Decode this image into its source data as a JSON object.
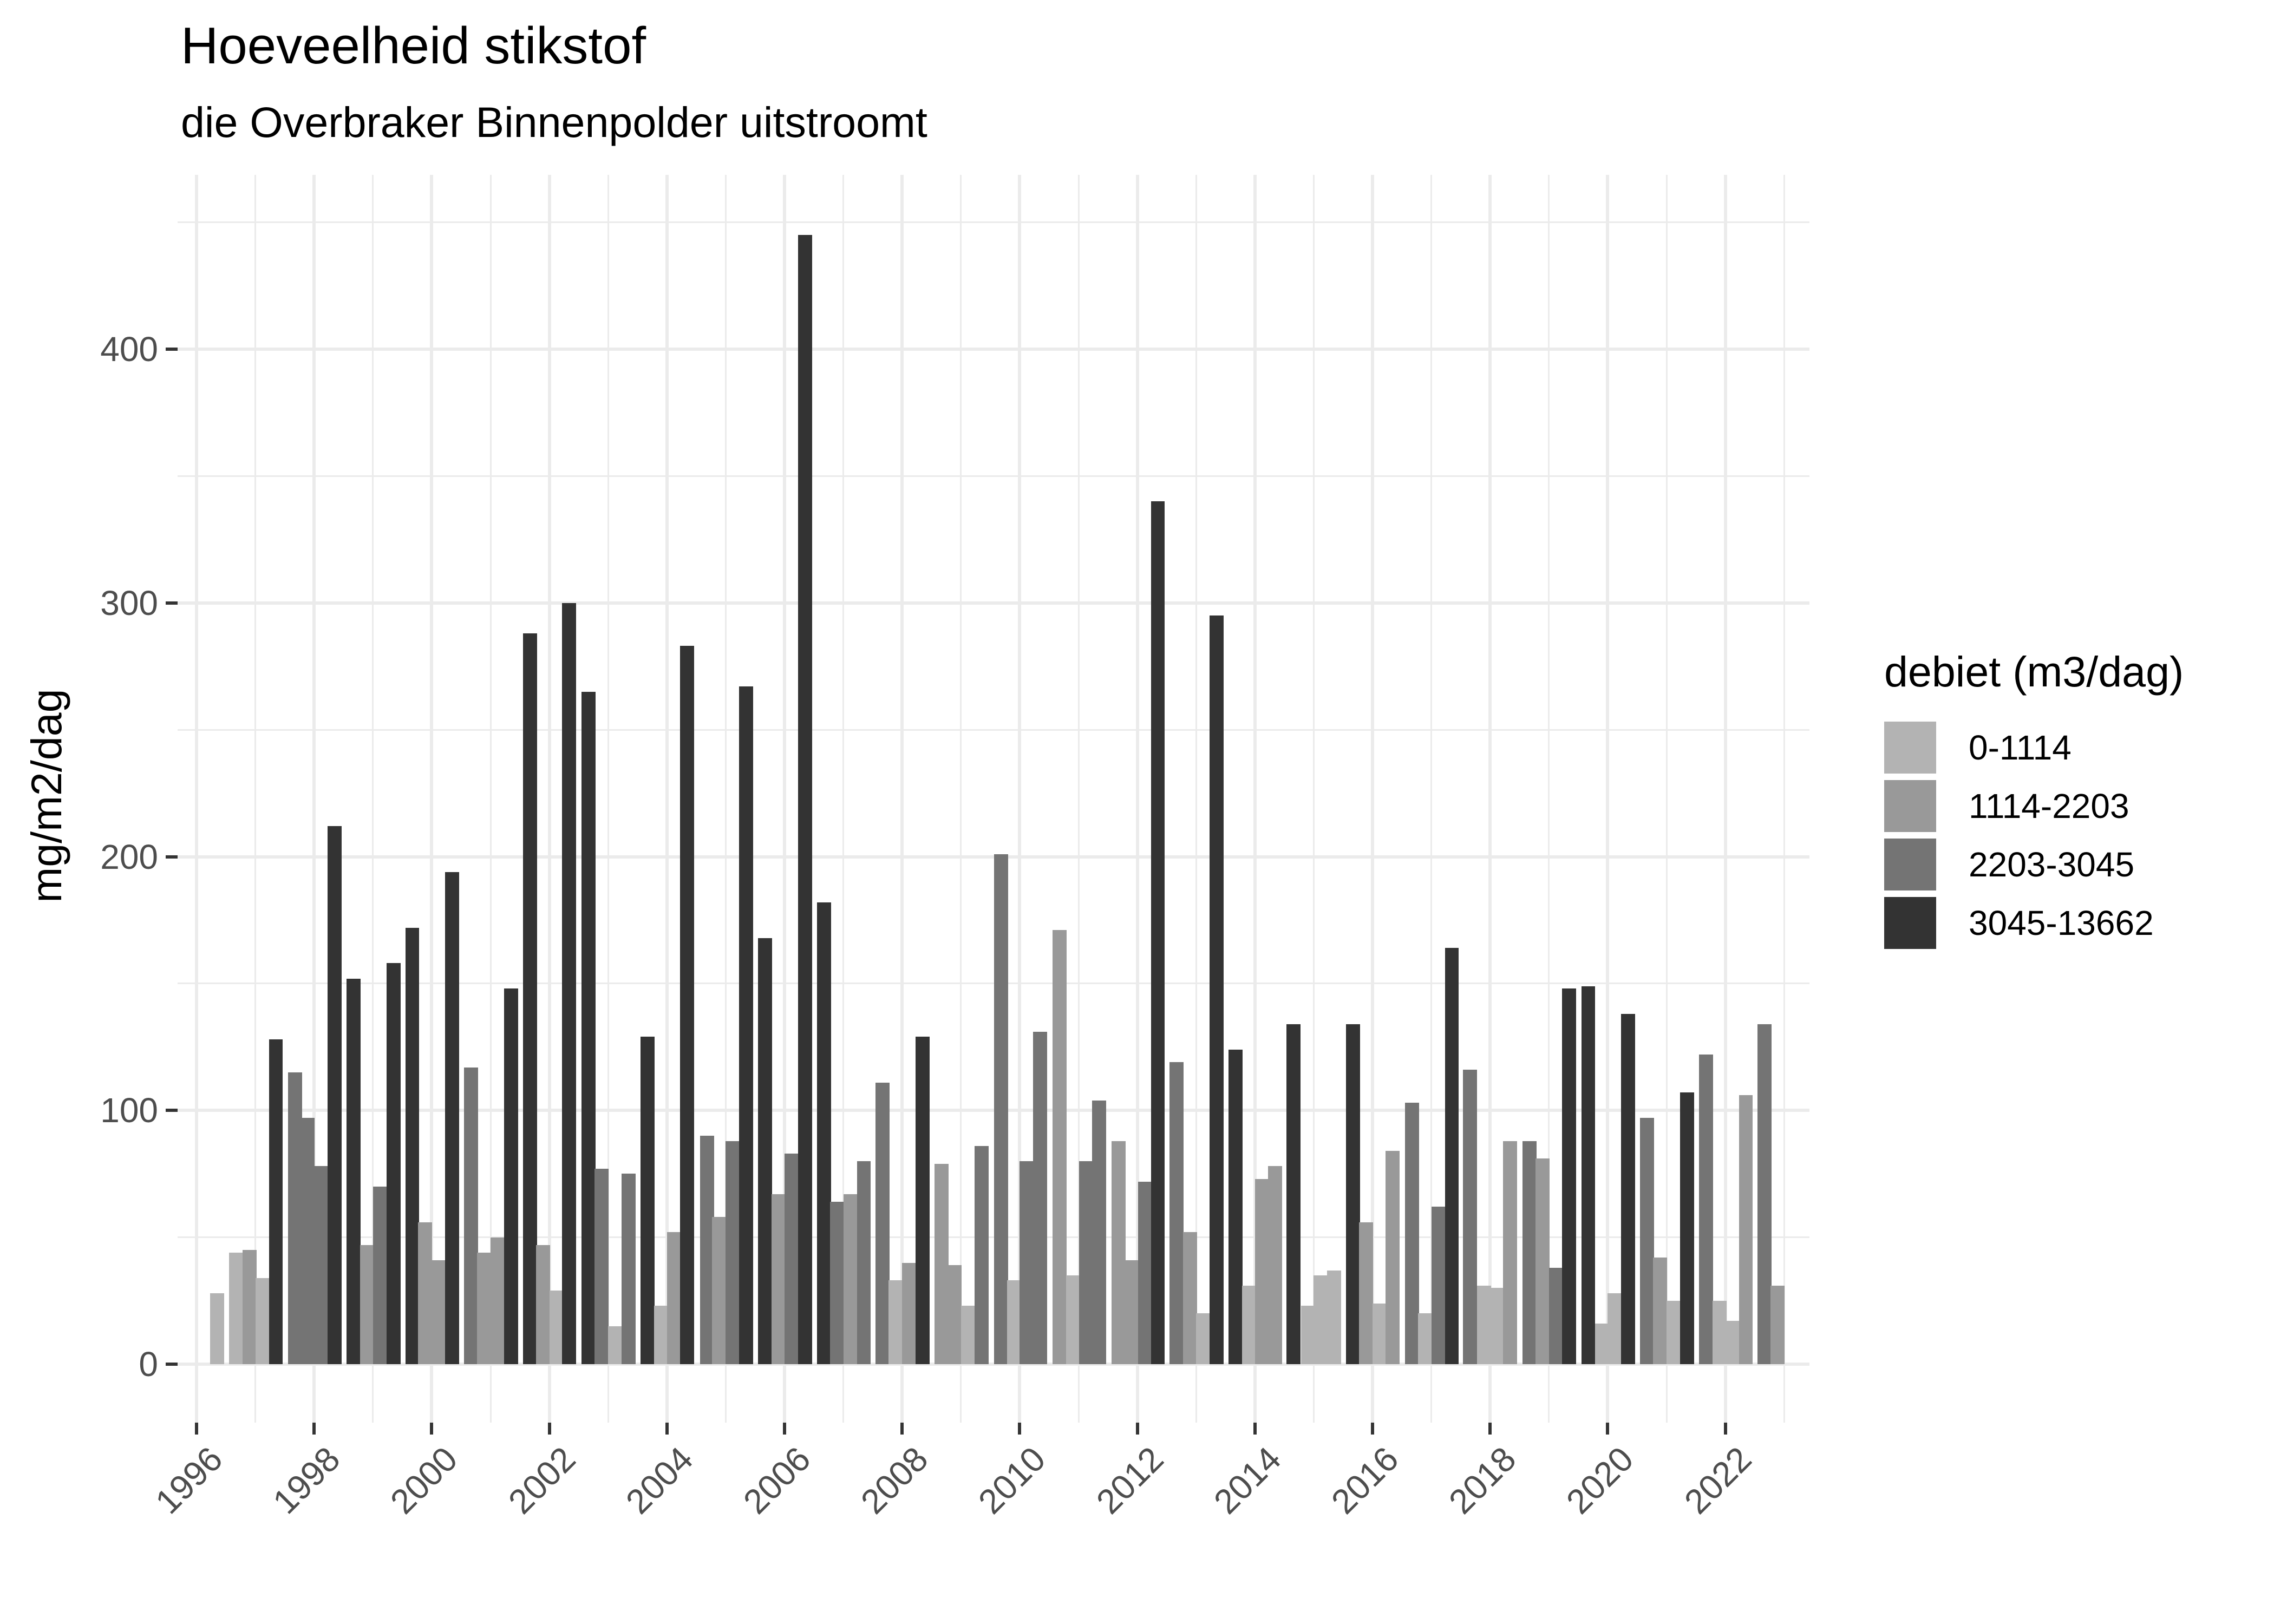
{
  "header": {
    "title": "Hoeveelheid stikstof",
    "subtitle": "die Overbraker Binnenpolder uitstroomt"
  },
  "axes": {
    "ylabel": "mg/m2/dag",
    "yticks": [
      "0",
      "100",
      "200",
      "300",
      "400"
    ],
    "xticks": [
      "1996",
      "1998",
      "2000",
      "2002",
      "2004",
      "2006",
      "2008",
      "2010",
      "2012",
      "2014",
      "2016",
      "2018",
      "2020",
      "2022"
    ]
  },
  "legend": {
    "title": "debiet (m3/dag)",
    "items": [
      {
        "label": "0-1114",
        "color": "#b3b3b3"
      },
      {
        "label": "1114-2203",
        "color": "#999999"
      },
      {
        "label": "2203-3045",
        "color": "#747474"
      },
      {
        "label": "3045-13662",
        "color": "#333333"
      }
    ]
  },
  "chart_data": {
    "type": "bar",
    "title": "Hoeveelheid stikstof",
    "subtitle": "die Overbraker Binnenpolder uitstroomt",
    "xlabel": "",
    "ylabel": "mg/m2/dag",
    "ylim": [
      0,
      468
    ],
    "xlim": [
      1995.7,
      2023.45
    ],
    "grid": true,
    "legend_position": "right",
    "legend_title": "debiet (m3/dag)",
    "categories_fill": {
      "0-1114": "#b3b3b3",
      "1114-2203": "#999999",
      "2203-3045": "#747474",
      "3045-13662": "#333333"
    },
    "bar_width_years": 0.22,
    "bars": [
      {
        "x": 1996.23,
        "cat": "0-1114",
        "y": 28
      },
      {
        "x": 1996.55,
        "cat": "0-1114",
        "y": 44
      },
      {
        "x": 1996.78,
        "cat": "1114-2203",
        "y": 45
      },
      {
        "x": 1997.0,
        "cat": "0-1114",
        "y": 34
      },
      {
        "x": 1997.23,
        "cat": "3045-13662",
        "y": 128
      },
      {
        "x": 1997.56,
        "cat": "2203-3045",
        "y": 115
      },
      {
        "x": 1997.77,
        "cat": "2203-3045",
        "y": 97
      },
      {
        "x": 1998.0,
        "cat": "2203-3045",
        "y": 78
      },
      {
        "x": 1998.23,
        "cat": "3045-13662",
        "y": 212
      },
      {
        "x": 1998.55,
        "cat": "3045-13662",
        "y": 152
      },
      {
        "x": 1998.78,
        "cat": "1114-2203",
        "y": 47
      },
      {
        "x": 1999.0,
        "cat": "2203-3045",
        "y": 70
      },
      {
        "x": 1999.23,
        "cat": "3045-13662",
        "y": 158
      },
      {
        "x": 1999.55,
        "cat": "3045-13662",
        "y": 172
      },
      {
        "x": 1999.77,
        "cat": "1114-2203",
        "y": 56
      },
      {
        "x": 2000.0,
        "cat": "1114-2203",
        "y": 41
      },
      {
        "x": 2000.23,
        "cat": "3045-13662",
        "y": 194
      },
      {
        "x": 2000.55,
        "cat": "2203-3045",
        "y": 117
      },
      {
        "x": 2000.77,
        "cat": "1114-2203",
        "y": 44
      },
      {
        "x": 2001.0,
        "cat": "1114-2203",
        "y": 50
      },
      {
        "x": 2001.23,
        "cat": "3045-13662",
        "y": 148
      },
      {
        "x": 2001.55,
        "cat": "3045-13662",
        "y": 288
      },
      {
        "x": 2001.77,
        "cat": "1114-2203",
        "y": 47
      },
      {
        "x": 2002.0,
        "cat": "0-1114",
        "y": 29
      },
      {
        "x": 2002.22,
        "cat": "3045-13662",
        "y": 300
      },
      {
        "x": 2002.55,
        "cat": "3045-13662",
        "y": 265
      },
      {
        "x": 2002.77,
        "cat": "2203-3045",
        "y": 77
      },
      {
        "x": 2003.0,
        "cat": "0-1114",
        "y": 15
      },
      {
        "x": 2003.23,
        "cat": "2203-3045",
        "y": 75
      },
      {
        "x": 2003.55,
        "cat": "3045-13662",
        "y": 129
      },
      {
        "x": 2003.78,
        "cat": "0-1114",
        "y": 23
      },
      {
        "x": 2004.0,
        "cat": "1114-2203",
        "y": 52
      },
      {
        "x": 2004.22,
        "cat": "3045-13662",
        "y": 283
      },
      {
        "x": 2004.56,
        "cat": "2203-3045",
        "y": 90
      },
      {
        "x": 2004.77,
        "cat": "1114-2203",
        "y": 58
      },
      {
        "x": 2005.0,
        "cat": "2203-3045",
        "y": 88
      },
      {
        "x": 2005.23,
        "cat": "3045-13662",
        "y": 267
      },
      {
        "x": 2005.55,
        "cat": "3045-13662",
        "y": 168
      },
      {
        "x": 2005.78,
        "cat": "1114-2203",
        "y": 67
      },
      {
        "x": 2006.0,
        "cat": "2203-3045",
        "y": 83
      },
      {
        "x": 2006.23,
        "cat": "3045-13662",
        "y": 445
      },
      {
        "x": 2006.55,
        "cat": "3045-13662",
        "y": 182
      },
      {
        "x": 2006.77,
        "cat": "2203-3045",
        "y": 64
      },
      {
        "x": 2007.0,
        "cat": "1114-2203",
        "y": 67
      },
      {
        "x": 2007.23,
        "cat": "2203-3045",
        "y": 80
      },
      {
        "x": 2007.55,
        "cat": "2203-3045",
        "y": 111
      },
      {
        "x": 2007.77,
        "cat": "0-1114",
        "y": 33
      },
      {
        "x": 2008.0,
        "cat": "1114-2203",
        "y": 40
      },
      {
        "x": 2008.23,
        "cat": "3045-13662",
        "y": 129
      },
      {
        "x": 2008.55,
        "cat": "1114-2203",
        "y": 79
      },
      {
        "x": 2008.77,
        "cat": "1114-2203",
        "y": 39
      },
      {
        "x": 2009.0,
        "cat": "0-1114",
        "y": 23
      },
      {
        "x": 2009.23,
        "cat": "2203-3045",
        "y": 86
      },
      {
        "x": 2009.56,
        "cat": "2203-3045",
        "y": 201
      },
      {
        "x": 2009.78,
        "cat": "0-1114",
        "y": 33
      },
      {
        "x": 2010.0,
        "cat": "2203-3045",
        "y": 80
      },
      {
        "x": 2010.23,
        "cat": "2203-3045",
        "y": 131
      },
      {
        "x": 2010.56,
        "cat": "1114-2203",
        "y": 171
      },
      {
        "x": 2010.79,
        "cat": "0-1114",
        "y": 35
      },
      {
        "x": 2011.01,
        "cat": "2203-3045",
        "y": 80
      },
      {
        "x": 2011.23,
        "cat": "2203-3045",
        "y": 104
      },
      {
        "x": 2011.56,
        "cat": "1114-2203",
        "y": 88
      },
      {
        "x": 2011.78,
        "cat": "1114-2203",
        "y": 41
      },
      {
        "x": 2012.01,
        "cat": "2203-3045",
        "y": 72
      },
      {
        "x": 2012.23,
        "cat": "3045-13662",
        "y": 340
      },
      {
        "x": 2012.55,
        "cat": "2203-3045",
        "y": 119
      },
      {
        "x": 2012.78,
        "cat": "1114-2203",
        "y": 52
      },
      {
        "x": 2013.0,
        "cat": "0-1114",
        "y": 20
      },
      {
        "x": 2013.23,
        "cat": "3045-13662",
        "y": 295
      },
      {
        "x": 2013.55,
        "cat": "3045-13662",
        "y": 124
      },
      {
        "x": 2013.78,
        "cat": "0-1114",
        "y": 31
      },
      {
        "x": 2014.0,
        "cat": "1114-2203",
        "y": 73
      },
      {
        "x": 2014.22,
        "cat": "1114-2203",
        "y": 78
      },
      {
        "x": 2014.54,
        "cat": "3045-13662",
        "y": 134
      },
      {
        "x": 2014.78,
        "cat": "0-1114",
        "y": 23
      },
      {
        "x": 2015.0,
        "cat": "0-1114",
        "y": 35
      },
      {
        "x": 2015.23,
        "cat": "0-1114",
        "y": 37
      },
      {
        "x": 2015.55,
        "cat": "3045-13662",
        "y": 134
      },
      {
        "x": 2015.77,
        "cat": "1114-2203",
        "y": 56
      },
      {
        "x": 2016.0,
        "cat": "0-1114",
        "y": 24
      },
      {
        "x": 2016.22,
        "cat": "1114-2203",
        "y": 84
      },
      {
        "x": 2016.55,
        "cat": "2203-3045",
        "y": 103
      },
      {
        "x": 2016.77,
        "cat": "0-1114",
        "y": 20
      },
      {
        "x": 2017.0,
        "cat": "2203-3045",
        "y": 62
      },
      {
        "x": 2017.23,
        "cat": "3045-13662",
        "y": 164
      },
      {
        "x": 2017.54,
        "cat": "2203-3045",
        "y": 116
      },
      {
        "x": 2017.78,
        "cat": "0-1114",
        "y": 31
      },
      {
        "x": 2018.0,
        "cat": "0-1114",
        "y": 30
      },
      {
        "x": 2018.22,
        "cat": "1114-2203",
        "y": 88
      },
      {
        "x": 2018.55,
        "cat": "2203-3045",
        "y": 88
      },
      {
        "x": 2018.77,
        "cat": "1114-2203",
        "y": 81
      },
      {
        "x": 2019.0,
        "cat": "2203-3045",
        "y": 38
      },
      {
        "x": 2019.22,
        "cat": "3045-13662",
        "y": 148
      },
      {
        "x": 2019.55,
        "cat": "3045-13662",
        "y": 149
      },
      {
        "x": 2019.78,
        "cat": "0-1114",
        "y": 16
      },
      {
        "x": 2020.0,
        "cat": "0-1114",
        "y": 28
      },
      {
        "x": 2020.23,
        "cat": "3045-13662",
        "y": 138
      },
      {
        "x": 2020.55,
        "cat": "2203-3045",
        "y": 97
      },
      {
        "x": 2020.77,
        "cat": "1114-2203",
        "y": 42
      },
      {
        "x": 2021.0,
        "cat": "0-1114",
        "y": 25
      },
      {
        "x": 2021.23,
        "cat": "3045-13662",
        "y": 107
      },
      {
        "x": 2021.55,
        "cat": "2203-3045",
        "y": 122
      },
      {
        "x": 2021.78,
        "cat": "0-1114",
        "y": 25
      },
      {
        "x": 2022.0,
        "cat": "0-1114",
        "y": 17
      },
      {
        "x": 2022.23,
        "cat": "1114-2203",
        "y": 106
      },
      {
        "x": 2022.55,
        "cat": "2203-3045",
        "y": 134
      },
      {
        "x": 2022.77,
        "cat": "1114-2203",
        "y": 31
      }
    ]
  }
}
